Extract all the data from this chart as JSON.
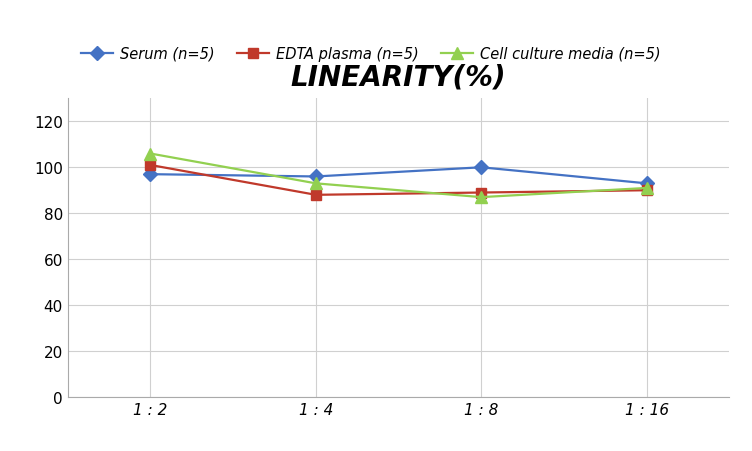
{
  "title": "LINEARITY(%)",
  "x_labels": [
    "1 : 2",
    "1 : 4",
    "1 : 8",
    "1 : 16"
  ],
  "x_positions": [
    0,
    1,
    2,
    3
  ],
  "series": [
    {
      "label": "Serum (n=5)",
      "values": [
        97,
        96,
        100,
        93
      ],
      "color": "#4472C4",
      "marker": "D",
      "markersize": 7
    },
    {
      "label": "EDTA plasma (n=5)",
      "values": [
        101,
        88,
        89,
        90
      ],
      "color": "#C0392B",
      "marker": "s",
      "markersize": 7
    },
    {
      "label": "Cell culture media (n=5)",
      "values": [
        106,
        93,
        87,
        91
      ],
      "color": "#92D050",
      "marker": "^",
      "markersize": 8
    }
  ],
  "ylim": [
    0,
    130
  ],
  "yticks": [
    0,
    20,
    40,
    60,
    80,
    100,
    120
  ],
  "background_color": "#FFFFFF",
  "grid_color": "#D0D0D0",
  "title_fontsize": 20,
  "legend_fontsize": 10.5,
  "tick_fontsize": 11
}
